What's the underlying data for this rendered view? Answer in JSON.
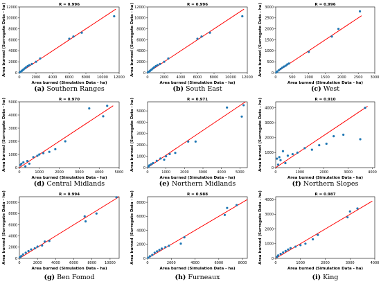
{
  "figure": {
    "colors": {
      "point": "#1f77b4",
      "fit_line": "#ff0000",
      "axis": "#000000"
    }
  },
  "chart_data": [
    {
      "type": "scatter",
      "panel_label": "(a)",
      "caption": "Southern Ranges",
      "title": "R = 0.996",
      "xlabel": "Area burned (Simulation Data - ha)",
      "ylabel": "Area burned (Surrogate Data - ha)",
      "xlim": [
        0,
        12000
      ],
      "ylim": [
        0,
        12000
      ],
      "xticks": [
        0,
        2000,
        4000,
        6000,
        8000,
        10000,
        12000
      ],
      "yticks": [
        0,
        2000,
        4000,
        6000,
        8000,
        10000,
        12000
      ],
      "fit_line": [
        [
          0,
          0
        ],
        [
          11600,
          11600
        ]
      ],
      "x": [
        50,
        150,
        300,
        400,
        500,
        650,
        800,
        1000,
        1200,
        1500,
        2000,
        2500,
        6000,
        6500,
        7500,
        11400
      ],
      "y": [
        100,
        200,
        350,
        500,
        600,
        800,
        1000,
        1200,
        1400,
        1600,
        2000,
        2600,
        6200,
        6600,
        7300,
        10300
      ]
    },
    {
      "type": "scatter",
      "panel_label": "(b)",
      "caption": "South East",
      "title": "R = 0.996",
      "xlabel": "Area burned (Simulation Data - ha)",
      "ylabel": "Area burned (Surrogate Data - ha)",
      "xlim": [
        0,
        12000
      ],
      "ylim": [
        0,
        12000
      ],
      "xticks": [
        0,
        2000,
        4000,
        6000,
        8000,
        10000,
        12000
      ],
      "yticks": [
        0,
        2000,
        4000,
        6000,
        8000,
        10000,
        12000
      ],
      "fit_line": [
        [
          0,
          0
        ],
        [
          11600,
          11600
        ]
      ],
      "x": [
        50,
        150,
        300,
        400,
        500,
        650,
        800,
        1000,
        1200,
        1500,
        2000,
        2500,
        6000,
        6500,
        7500,
        11400
      ],
      "y": [
        100,
        200,
        350,
        500,
        600,
        800,
        1000,
        1200,
        1400,
        1600,
        2000,
        2600,
        6200,
        6600,
        7300,
        10300
      ]
    },
    {
      "type": "scatter",
      "panel_label": "(c)",
      "caption": "West",
      "title": "R = 0.996",
      "xlabel": "Area burned (Simulation Data - ha)",
      "ylabel": "Area burned (Surrogate Data - ha)",
      "xlim": [
        0,
        3000
      ],
      "ylim": [
        0,
        3000
      ],
      "xticks": [
        0,
        500,
        1000,
        1500,
        2000,
        2500,
        3000
      ],
      "yticks": [
        0,
        500,
        1000,
        1500,
        2000,
        2500,
        3000
      ],
      "fit_line": [
        [
          0,
          0
        ],
        [
          2600,
          2600
        ]
      ],
      "x": [
        20,
        50,
        100,
        150,
        200,
        250,
        300,
        350,
        400,
        1000,
        1700,
        1900,
        2550
      ],
      "y": [
        20,
        60,
        120,
        180,
        230,
        280,
        320,
        380,
        420,
        950,
        1650,
        2000,
        2800
      ]
    },
    {
      "type": "scatter",
      "panel_label": "(d)",
      "caption": "Central Midlands",
      "title": "R = 0.970",
      "xlabel": "Area burned (Simulation Data - ha)",
      "ylabel": "Area burned (Surrogate Data - ha)",
      "xlim": [
        0,
        5000
      ],
      "ylim": [
        0,
        5000
      ],
      "xticks": [
        0,
        1000,
        2000,
        3000,
        4000,
        5000
      ],
      "yticks": [
        0,
        1000,
        2000,
        3000,
        4000,
        5000
      ],
      "fit_line": [
        [
          0,
          0
        ],
        [
          4700,
          4700
        ]
      ],
      "x": [
        50,
        100,
        200,
        300,
        400,
        500,
        700,
        900,
        1000,
        1200,
        1500,
        1800,
        2300,
        3500,
        4200,
        4400
      ],
      "y": [
        200,
        300,
        400,
        100,
        500,
        300,
        800,
        900,
        1000,
        1100,
        1200,
        1400,
        2000,
        4500,
        3900,
        4700
      ]
    },
    {
      "type": "scatter",
      "panel_label": "(e)",
      "caption": "Northern Midlands",
      "title": "R = 0.971",
      "xlabel": "Area burned (Simulation Data - ha)",
      "ylabel": "Area burned (Surrogate Data - ha)",
      "xlim": [
        0,
        5400
      ],
      "ylim": [
        0,
        5800
      ],
      "xticks": [
        0,
        1000,
        2000,
        3000,
        4000,
        5000
      ],
      "yticks": [
        0,
        1000,
        2000,
        3000,
        4000,
        5000
      ],
      "fit_line": [
        [
          0,
          0
        ],
        [
          5300,
          5800
        ]
      ],
      "x": [
        50,
        100,
        200,
        300,
        500,
        700,
        900,
        1000,
        1200,
        1500,
        2200,
        2600,
        4300,
        5100,
        5200
      ],
      "y": [
        100,
        200,
        300,
        400,
        600,
        800,
        700,
        1000,
        1200,
        1300,
        2300,
        2300,
        5300,
        4500,
        5500
      ]
    },
    {
      "type": "scatter",
      "panel_label": "(f)",
      "caption": "Northern Slopes",
      "title": "R = 0.910",
      "xlabel": "Area burned (Simulation Data - ha)",
      "ylabel": "Area burned (Surrogate Data - ha)",
      "xlim": [
        0,
        4100
      ],
      "ylim": [
        0,
        4400
      ],
      "xticks": [
        0,
        1000,
        2000,
        3000,
        4000
      ],
      "yticks": [
        0,
        1000,
        2000,
        3000,
        4000
      ],
      "fit_line": [
        [
          0,
          0
        ],
        [
          3800,
          4100
        ]
      ],
      "x": [
        50,
        100,
        150,
        200,
        300,
        400,
        500,
        700,
        900,
        1200,
        1500,
        1800,
        2100,
        2400,
        2800,
        3500,
        3700
      ],
      "y": [
        600,
        200,
        700,
        500,
        1100,
        300,
        800,
        900,
        1000,
        1300,
        1200,
        1500,
        1600,
        2100,
        2200,
        1900,
        4000
      ]
    },
    {
      "type": "scatter",
      "panel_label": "(g)",
      "caption": "Ben Fomod",
      "title": "R = 0.994",
      "xlabel": "Area burned (Simulation Data - ha)",
      "ylabel": "Area burned (Surrogate Data - ha)",
      "xlim": [
        0,
        11000
      ],
      "ylim": [
        0,
        11000
      ],
      "xticks": [
        0,
        2000,
        4000,
        6000,
        8000,
        10000
      ],
      "yticks": [
        0,
        2000,
        4000,
        6000,
        8000,
        10000
      ],
      "fit_line": [
        [
          0,
          0
        ],
        [
          11000,
          11000
        ]
      ],
      "x": [
        50,
        200,
        400,
        700,
        1000,
        1300,
        1700,
        2000,
        2500,
        2800,
        3300,
        7200,
        7300,
        8500,
        10700
      ],
      "y": [
        200,
        400,
        700,
        1000,
        1300,
        1600,
        1800,
        2100,
        2300,
        3000,
        3100,
        7500,
        6600,
        8000,
        10900
      ]
    },
    {
      "type": "scatter",
      "panel_label": "(h)",
      "caption": "Furneaux",
      "title": "R = 0.988",
      "xlabel": "Area burned (Simulation Data - ha)",
      "ylabel": "Area burned (Surrogate Data - ha)",
      "xlim": [
        0,
        8400
      ],
      "ylim": [
        0,
        8800
      ],
      "xticks": [
        0,
        2000,
        4000,
        6000,
        8000
      ],
      "yticks": [
        0,
        2000,
        4000,
        6000,
        8000
      ],
      "fit_line": [
        [
          0,
          0
        ],
        [
          8400,
          8400
        ]
      ],
      "x": [
        50,
        200,
        400,
        600,
        800,
        1000,
        1200,
        1500,
        1800,
        2800,
        3100,
        6500,
        6700,
        7500
      ],
      "y": [
        100,
        300,
        500,
        800,
        1000,
        1200,
        1400,
        1600,
        1800,
        2100,
        3000,
        6200,
        7200,
        7600
      ]
    },
    {
      "type": "scatter",
      "panel_label": "(i)",
      "caption": "King",
      "title": "R = 0.987",
      "xlabel": "Area burned (Simulation Data - ha)",
      "ylabel": "Area burned (Surrogate Data - ha)",
      "xlim": [
        0,
        4000
      ],
      "ylim": [
        0,
        4200
      ],
      "xticks": [
        0,
        1000,
        2000,
        3000,
        4000
      ],
      "yticks": [
        0,
        1000,
        2000,
        3000,
        4000
      ],
      "fit_line": [
        [
          0,
          0
        ],
        [
          3900,
          3900
        ]
      ],
      "x": [
        50,
        100,
        200,
        300,
        400,
        500,
        600,
        800,
        1000,
        1200,
        1500,
        1700,
        2900,
        3000,
        3300
      ],
      "y": [
        100,
        200,
        300,
        400,
        500,
        600,
        700,
        800,
        900,
        1000,
        1300,
        1600,
        2800,
        3200,
        3400
      ]
    }
  ]
}
